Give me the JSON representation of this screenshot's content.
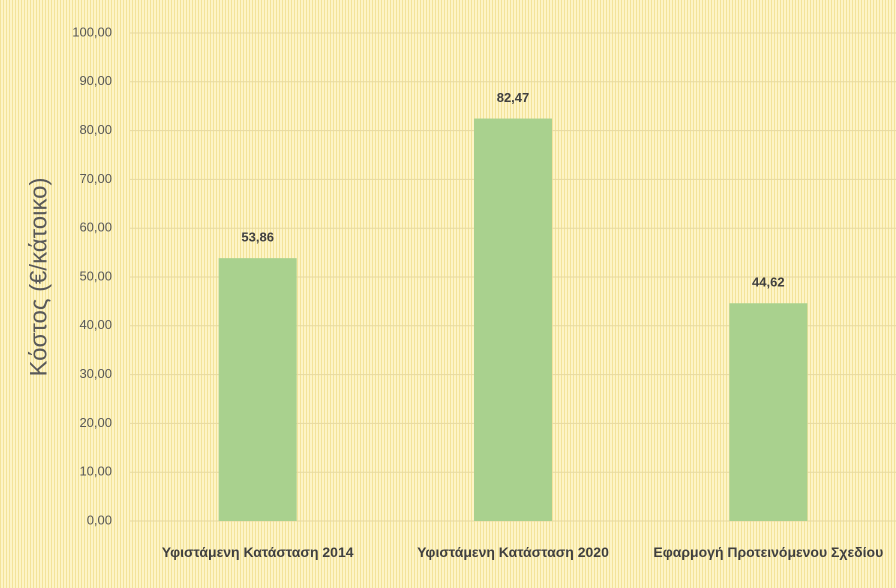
{
  "chart_data": {
    "type": "bar",
    "y_axis_label": "Κόστος (€/κάτοικο)",
    "categories": [
      "Υφιστάμενη Κατάσταση 2014",
      "Υφιστάμενη Κατάσταση 2020",
      "Εφαρμογή Προτεινόμενου Σχεδίου"
    ],
    "values": [
      53.86,
      82.47,
      44.62
    ],
    "value_labels": [
      "53,86",
      "82,47",
      "44,62"
    ],
    "color": "#a9d18e",
    "ylim": [
      0,
      100
    ],
    "yticks": [
      {
        "value": 0,
        "label": "0,00"
      },
      {
        "value": 10,
        "label": "10,00"
      },
      {
        "value": 20,
        "label": "20,00"
      },
      {
        "value": 30,
        "label": "30,00"
      },
      {
        "value": 40,
        "label": "40,00"
      },
      {
        "value": 50,
        "label": "50,00"
      },
      {
        "value": 60,
        "label": "60,00"
      },
      {
        "value": 70,
        "label": "70,00"
      },
      {
        "value": 80,
        "label": "80,00"
      },
      {
        "value": 90,
        "label": "90,00"
      },
      {
        "value": 100,
        "label": "100,00"
      }
    ],
    "grid": true
  }
}
